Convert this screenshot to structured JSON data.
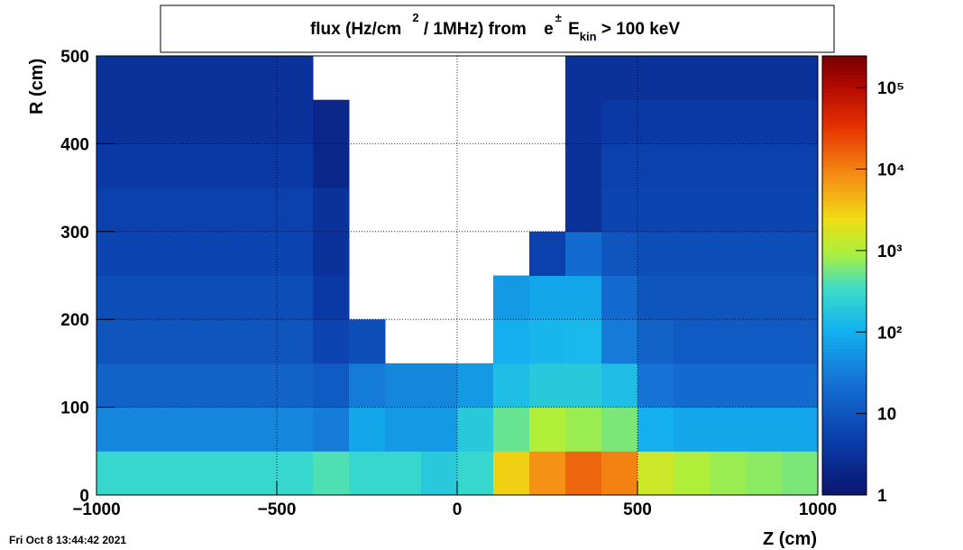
{
  "chart_data": {
    "type": "heatmap",
    "title": [
      "flux (Hz/cm",
      "2",
      " / 1MHz) from ",
      "e",
      "±",
      " E",
      "kin",
      " > 100 keV"
    ],
    "xlabel": "Z (cm)",
    "ylabel": "R (cm)",
    "timestamp": "Fri Oct  8 13:44:42 2021",
    "xlim": [
      -1000,
      1000
    ],
    "ylim": [
      0,
      500
    ],
    "xticks": [
      {
        "value": -1000,
        "label": "−1000"
      },
      {
        "value": -500,
        "label": "−500"
      },
      0,
      500,
      1000
    ],
    "yticks": [
      0,
      100,
      200,
      300,
      400,
      500
    ],
    "x_bins": [
      -1000,
      -900,
      -800,
      -700,
      -600,
      -500,
      -400,
      -300,
      -200,
      -100,
      0,
      100,
      200,
      300,
      400,
      500,
      600,
      700,
      800,
      900,
      1000
    ],
    "y_bins": [
      0,
      50,
      100,
      150,
      200,
      250,
      300,
      350,
      400,
      450,
      500
    ],
    "zlim": [
      1,
      245000
    ],
    "zlog": true,
    "zticks": [
      1,
      10,
      {
        "value": 100,
        "label": "10²"
      },
      {
        "value": 1000,
        "label": "10³"
      },
      {
        "value": 10000,
        "label": "10⁴"
      },
      {
        "value": 100000,
        "label": "10⁵"
      }
    ],
    "grid": true,
    "z": [
      [
        300,
        300,
        300,
        300,
        300,
        300,
        400,
        300,
        300,
        200,
        300,
        3000,
        8000,
        15000,
        10000,
        1500,
        1000,
        800,
        700,
        600
      ],
      [
        40,
        40,
        40,
        40,
        40,
        40,
        30,
        80,
        60,
        60,
        200,
        500,
        1000,
        800,
        600,
        100,
        80,
        80,
        80,
        80
      ],
      [
        15,
        15,
        15,
        15,
        15,
        15,
        12,
        30,
        40,
        40,
        60,
        150,
        200,
        200,
        150,
        25,
        20,
        20,
        20,
        20
      ],
      [
        10,
        10,
        10,
        10,
        10,
        10,
        6,
        8,
        null,
        null,
        null,
        100,
        120,
        130,
        30,
        15,
        12,
        12,
        12,
        12
      ],
      [
        8,
        8,
        8,
        8,
        8,
        8,
        4,
        null,
        null,
        null,
        null,
        60,
        80,
        80,
        20,
        10,
        10,
        10,
        10,
        10
      ],
      [
        6,
        6,
        6,
        6,
        6,
        6,
        3,
        null,
        null,
        null,
        null,
        null,
        5,
        20,
        10,
        8,
        8,
        8,
        8,
        8
      ],
      [
        5,
        5,
        5,
        5,
        5,
        5,
        3,
        null,
        null,
        null,
        null,
        null,
        null,
        3,
        6,
        6,
        6,
        6,
        6,
        6
      ],
      [
        4,
        4,
        4,
        4,
        4,
        4,
        2,
        null,
        null,
        null,
        null,
        null,
        null,
        3,
        5,
        5,
        5,
        5,
        5,
        5
      ],
      [
        3,
        3,
        3,
        3,
        3,
        3,
        2,
        null,
        null,
        null,
        null,
        null,
        null,
        3,
        4,
        4,
        4,
        4,
        4,
        4
      ],
      [
        3,
        3,
        3,
        3,
        3,
        3,
        null,
        null,
        null,
        null,
        null,
        null,
        null,
        3,
        3,
        3,
        3,
        3,
        3,
        3
      ]
    ]
  }
}
